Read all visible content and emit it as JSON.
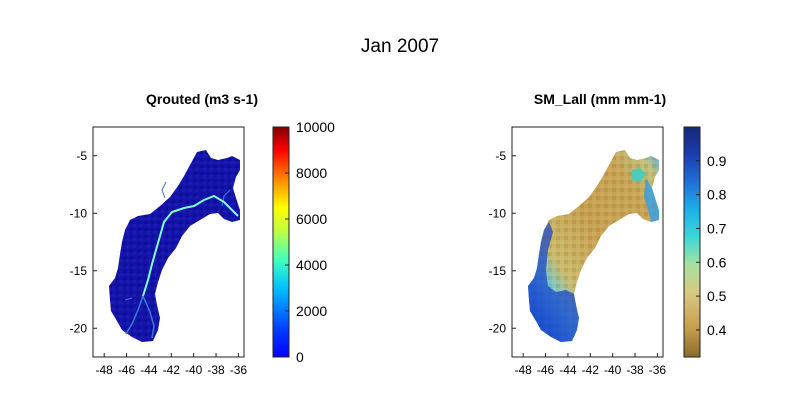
{
  "figure_title": "Jan 2007",
  "colors": {
    "basin_qrouted": "#1212a8",
    "river": "#7fffd4",
    "tributary": "#3a7ad8",
    "sm_dry": "#c4a454",
    "sm_wet": "#1c3ca8"
  },
  "chart_data": [
    {
      "type": "heatmap",
      "title": "Qrouted (m3 s-1)",
      "xlabel": "",
      "ylabel": "",
      "xlim": [
        -49,
        -35.5
      ],
      "ylim": [
        -22.5,
        -2.5
      ],
      "x_ticks": [
        -48,
        -46,
        -44,
        -42,
        -40,
        -38,
        -36
      ],
      "x_tick_labels": [
        "-48",
        "-46",
        "-44",
        "-42",
        "-40",
        "-38",
        "-36"
      ],
      "y_ticks": [
        -5,
        -10,
        -15,
        -20
      ],
      "y_tick_labels": [
        "-5",
        "-10",
        "-15",
        "-20"
      ],
      "colorbar": {
        "colormap": "jet",
        "range": [
          0,
          10000
        ],
        "ticks": [
          0,
          2000,
          4000,
          6000,
          8000,
          10000
        ],
        "tick_labels": [
          "0",
          "2000",
          "4000",
          "6000",
          "8000",
          "10000"
        ]
      },
      "description_values": {
        "background_flow": 0,
        "main_channel_flow": 3500
      }
    },
    {
      "type": "heatmap",
      "title": "SM_Lall (mm mm-1)",
      "xlabel": "",
      "ylabel": "",
      "xlim": [
        -49,
        -35.5
      ],
      "ylim": [
        -22.5,
        -2.5
      ],
      "x_ticks": [
        -48,
        -46,
        -44,
        -42,
        -40,
        -38,
        -36
      ],
      "x_tick_labels": [
        "-48",
        "-46",
        "-44",
        "-42",
        "-40",
        "-38",
        "-36"
      ],
      "y_ticks": [
        -5,
        -10,
        -15,
        -20
      ],
      "y_tick_labels": [
        "-5",
        "-10",
        "-15",
        "-20"
      ],
      "colorbar": {
        "colormap": "brown-yellow-cyan-blue",
        "range": [
          0.32,
          1.0
        ],
        "ticks": [
          0.4,
          0.5,
          0.6,
          0.7,
          0.8,
          0.9
        ],
        "tick_labels": [
          "0.4",
          "0.5",
          "0.6",
          "0.7",
          "0.8",
          "0.9"
        ]
      },
      "description_values": {
        "interior_min": 0.38,
        "southwest_max": 0.9
      }
    }
  ]
}
